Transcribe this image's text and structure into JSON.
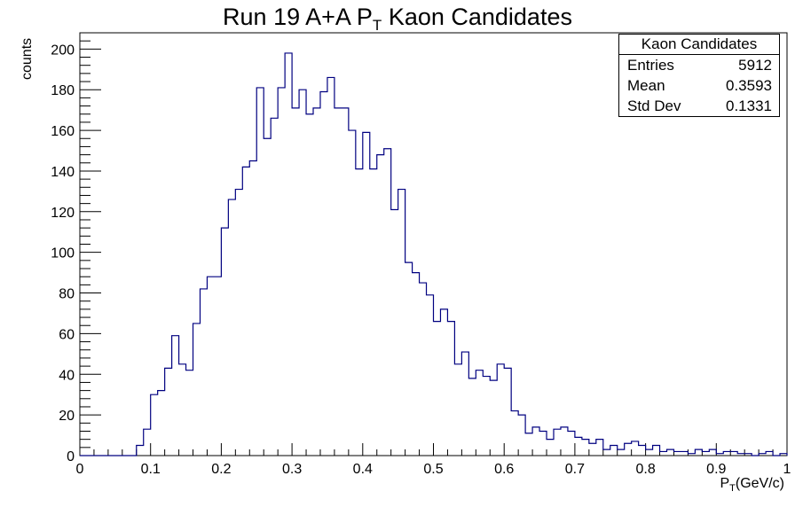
{
  "title_parts": {
    "main": "Run 19 A+A P",
    "sub": "T",
    "rest": " Kaon Candidates"
  },
  "ylabel": "counts",
  "xlabel_parts": {
    "main": "P",
    "sub": "T",
    "rest": "(GeV/c)"
  },
  "stats_box": {
    "name": "Kaon Candidates",
    "rows": [
      {
        "label": "Entries",
        "value": "5912"
      },
      {
        "label": "Mean",
        "value": "0.3593"
      },
      {
        "label": "Std Dev",
        "value": "0.1331"
      }
    ]
  },
  "chart_data": {
    "type": "histogram",
    "xlim": [
      0,
      1
    ],
    "ylim": [
      0,
      208
    ],
    "bin_width": 0.01,
    "x_ticks": [
      "0",
      "0.1",
      "0.2",
      "0.3",
      "0.4",
      "0.5",
      "0.6",
      "0.7",
      "0.8",
      "0.9",
      "1"
    ],
    "y_ticks": [
      "0",
      "20",
      "40",
      "60",
      "80",
      "100",
      "120",
      "140",
      "160",
      "180",
      "200"
    ],
    "line_color": "#000080",
    "counts": [
      0,
      0,
      0,
      0,
      0,
      0,
      0,
      0,
      5,
      13,
      30,
      32,
      43,
      59,
      45,
      42,
      65,
      82,
      88,
      88,
      112,
      126,
      131,
      142,
      145,
      181,
      156,
      166,
      181,
      198,
      171,
      180,
      168,
      171,
      179,
      186,
      171,
      171,
      160,
      141,
      159,
      141,
      148,
      151,
      121,
      131,
      95,
      90,
      85,
      79,
      66,
      72,
      66,
      45,
      51,
      38,
      42,
      39,
      37,
      45,
      43,
      22,
      20,
      11,
      14,
      12,
      8,
      13,
      14,
      12,
      9,
      8,
      6,
      8,
      3,
      5,
      3,
      6,
      7,
      5,
      3,
      5,
      2,
      3,
      2,
      2,
      1,
      3,
      2,
      3,
      1,
      2,
      2,
      1,
      1,
      0,
      1,
      2,
      0,
      1
    ]
  }
}
